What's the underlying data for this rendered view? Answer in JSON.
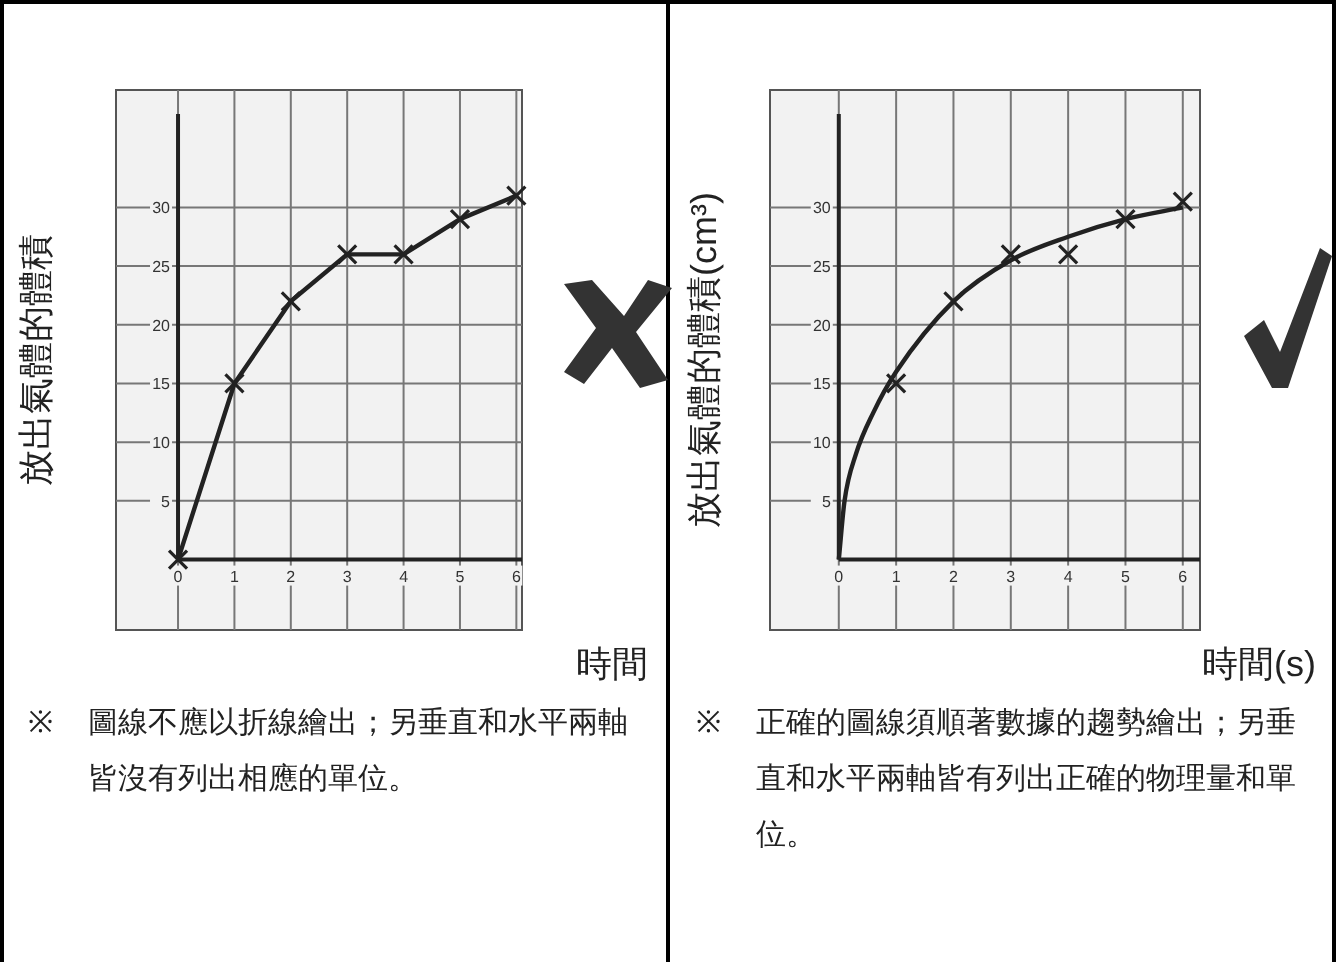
{
  "chart_data": [
    {
      "type": "line",
      "xlabel": "時間",
      "ylabel": "放出氣體的體積",
      "xlim": [
        -1.1,
        6.1
      ],
      "ylim": [
        -6,
        40
      ],
      "xticks": [
        0,
        1,
        2,
        3,
        4,
        5,
        6
      ],
      "yticks": [
        5,
        10,
        15,
        20,
        25,
        30
      ],
      "grid": true,
      "marker": "cross",
      "x": [
        0,
        1,
        2,
        3,
        4,
        5,
        6
      ],
      "series": [
        {
          "color": "#222222",
          "values": [
            0,
            15,
            22,
            26,
            26,
            29,
            31
          ]
        }
      ],
      "annotations": [
        "※ 圖線不應以折線繪出；另垂直和水平兩軸皆沒有列出相應的單位。"
      ]
    },
    {
      "type": "scatter",
      "xlabel": "時間(s)",
      "ylabel": "放出氣體的體積(cm³)",
      "xlim": [
        -1.2,
        6.3
      ],
      "ylim": [
        -6,
        40
      ],
      "xticks": [
        0,
        1,
        2,
        3,
        4,
        5,
        6
      ],
      "yticks": [
        5,
        10,
        15,
        20,
        25,
        30
      ],
      "grid": true,
      "marker": "cross",
      "series": [
        {
          "color": "#222222",
          "x": [
            1,
            2,
            3,
            4,
            5,
            6
          ],
          "values": [
            15,
            22,
            26,
            26,
            29,
            30.5
          ]
        },
        {
          "type": "line",
          "color": "#222222",
          "marker": "none",
          "x": [
            0,
            0.1,
            0.3,
            0.6,
            1,
            2,
            3,
            4,
            5,
            6
          ],
          "values": [
            0,
            5,
            9,
            12.5,
            16,
            22,
            25.5,
            27.5,
            29,
            30
          ]
        }
      ],
      "annotations": [
        "※ 正確的圖線須順著數據的趨勢繪出；另垂直和水平兩軸皆有列出正確的物理量和單位。"
      ]
    }
  ]
}
